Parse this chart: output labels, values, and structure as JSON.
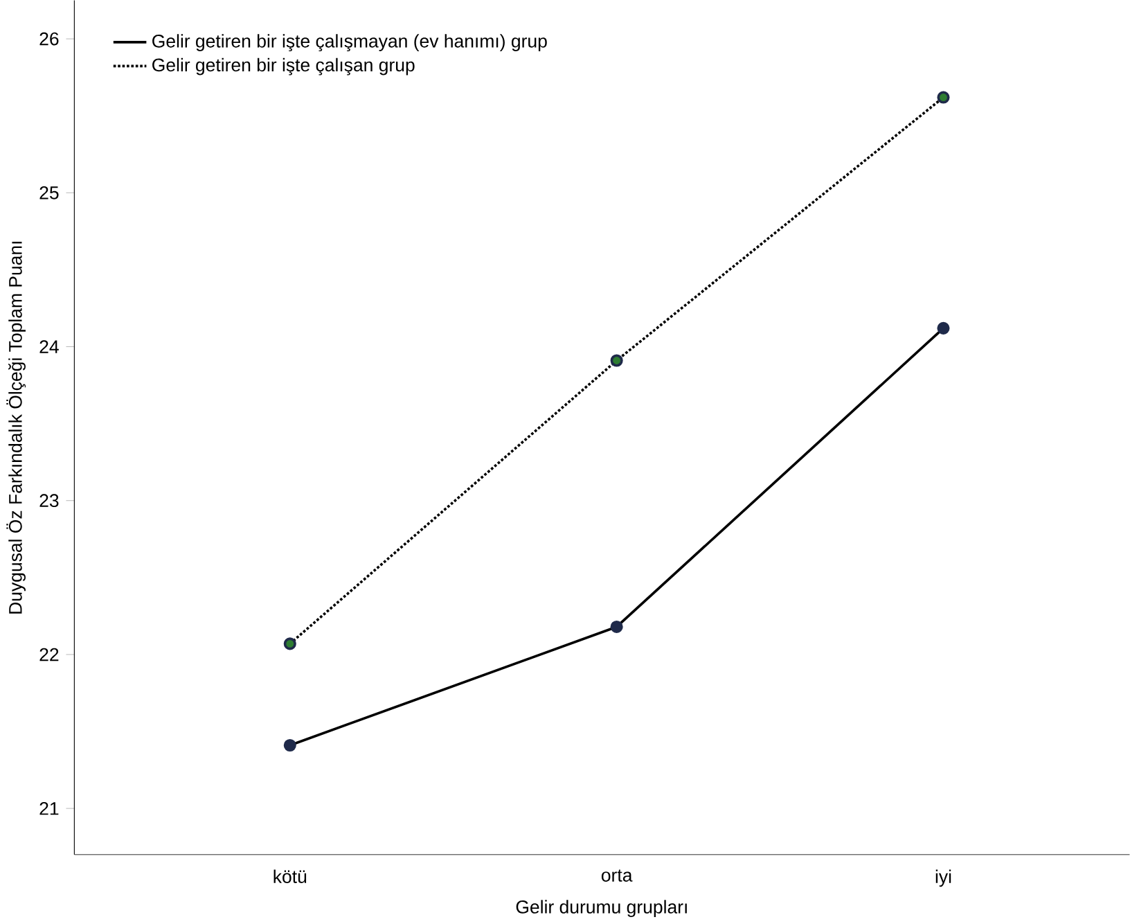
{
  "chart_data": {
    "type": "line",
    "xlabel": "Gelir durumu grupları",
    "ylabel": "Duygusal Öz Farkındalık Ölçeği Toplam Puanı",
    "categories": [
      "kötü",
      "orta",
      "iyi"
    ],
    "series": [
      {
        "name": "Gelir getiren bir işte çalışmayan (ev hanımı) grup",
        "color": "#000000",
        "line_style": "solid",
        "values": [
          21.41,
          22.18,
          24.12
        ]
      },
      {
        "name": "Gelir getiren bir işte çalışan grup",
        "color": "#000000",
        "line_style": "dotted",
        "values": [
          22.07,
          23.91,
          25.62
        ]
      }
    ],
    "ylim": [
      20.7,
      26.25
    ],
    "yticks": [
      21,
      22,
      23,
      24,
      25,
      26
    ],
    "marker": "circle",
    "legend": "top left",
    "grid": false
  }
}
